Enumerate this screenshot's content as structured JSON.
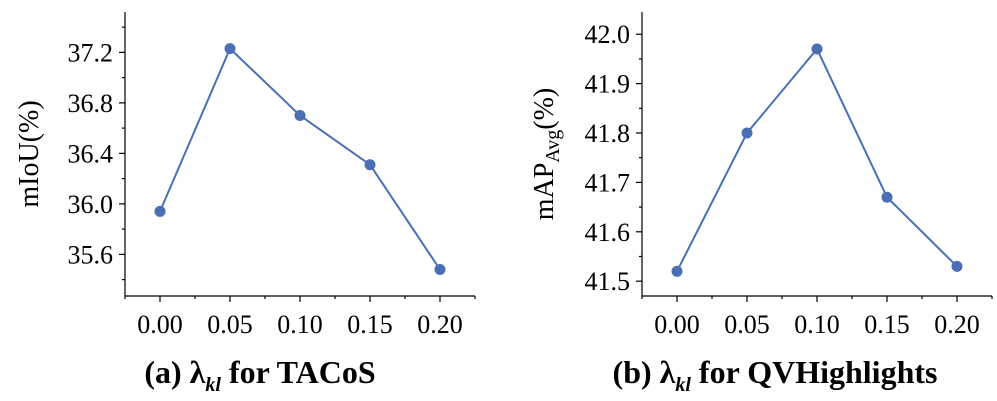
{
  "chart_data": [
    {
      "type": "line",
      "x": [
        0.0,
        0.05,
        0.1,
        0.15,
        0.2
      ],
      "x_tick_labels": [
        "0.00",
        "0.05",
        "0.10",
        "0.15",
        "0.20"
      ],
      "y": [
        35.94,
        37.23,
        36.7,
        36.31,
        35.48
      ],
      "y_ticks": [
        35.6,
        36.0,
        36.4,
        36.8,
        37.2
      ],
      "y_tick_labels": [
        "35.6",
        "36.0",
        "36.4",
        "36.8",
        "37.2"
      ],
      "ylim": [
        35.27,
        37.52
      ],
      "xlim": [
        -0.025,
        0.225
      ],
      "ylabel": "mIoU(%)",
      "xlabel": "",
      "caption_prefix": "(a) ",
      "caption_symbol": "λ",
      "caption_sub": "kl",
      "caption_suffix": " for TACoS",
      "color": "#4a6fb5"
    },
    {
      "type": "line",
      "x": [
        0.0,
        0.05,
        0.1,
        0.15,
        0.2
      ],
      "x_tick_labels": [
        "0.00",
        "0.05",
        "0.10",
        "0.15",
        "0.20"
      ],
      "y": [
        41.52,
        41.8,
        41.97,
        41.67,
        41.53
      ],
      "y_ticks": [
        41.5,
        41.6,
        41.7,
        41.8,
        41.9,
        42.0
      ],
      "y_tick_labels": [
        "41.5",
        "41.6",
        "41.7",
        "41.8",
        "41.9",
        "42.0"
      ],
      "ylim": [
        41.47,
        42.045
      ],
      "xlim": [
        -0.025,
        0.225
      ],
      "ylabel_main": "mAP",
      "ylabel_sub": "Avg",
      "ylabel_suffix": "(%)",
      "xlabel": "",
      "caption_prefix": "(b) ",
      "caption_symbol": "λ",
      "caption_sub": "kl",
      "caption_suffix": " for QVHighlights",
      "color": "#4a6fb5"
    }
  ]
}
